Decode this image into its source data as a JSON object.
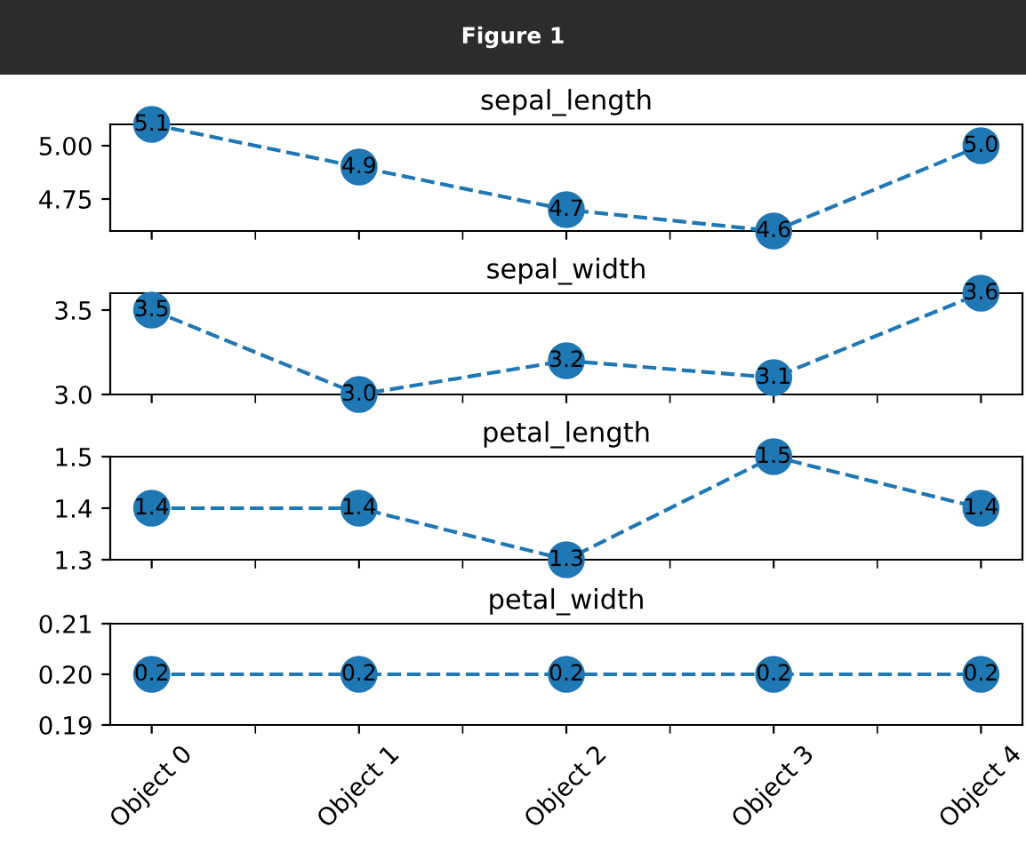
{
  "chart_data": [
    {
      "type": "line",
      "title": "sepal_length",
      "annotations": [
        "Figure 1"
      ],
      "categories": [
        null,
        null,
        null,
        null,
        null
      ],
      "series": [
        {
          "color": "#1f77b4",
          "values": [
            5.1,
            4.9,
            4.7,
            4.6,
            5.0
          ],
          "value_labels": [
            "5.1",
            "4.9",
            "4.7",
            "4.6",
            "5.0"
          ]
        }
      ],
      "ylim": [
        4.6,
        5.1
      ],
      "yticks": [
        4.75,
        {
          "value": 5.0,
          "label": "5.00"
        }
      ],
      "tick_labels": "y",
      "marker": "circle",
      "line_style": "dashed"
    },
    {
      "type": "line",
      "title": "sepal_width",
      "categories": [
        null,
        null,
        null,
        null,
        null
      ],
      "series": [
        {
          "color": "#1f77b4",
          "values": [
            3.5,
            3.0,
            3.2,
            3.1,
            3.6
          ],
          "value_labels": [
            "3.5",
            "3.0",
            "3.2",
            "3.1",
            "3.6"
          ]
        }
      ],
      "ylim": [
        3.0,
        3.6
      ],
      "yticks": [
        {
          "value": 3.0,
          "label": "3.0"
        },
        3.5
      ],
      "tick_labels": "y",
      "marker": "circle",
      "line_style": "dashed"
    },
    {
      "type": "line",
      "title": "petal_length",
      "categories": [
        null,
        null,
        null,
        null,
        null
      ],
      "series": [
        {
          "color": "#1f77b4",
          "values": [
            1.4,
            1.4,
            1.3,
            1.5,
            1.4
          ],
          "value_labels": [
            "1.4",
            "1.4",
            "1.3",
            "1.5",
            "1.4"
          ]
        }
      ],
      "ylim": [
        1.3,
        1.5
      ],
      "yticks": [
        1.3,
        1.4,
        1.5
      ],
      "tick_labels": "y",
      "marker": "circle",
      "line_style": "dashed"
    },
    {
      "type": "line",
      "title": "petal_width",
      "categories": [
        "Object 0",
        "Object 1",
        "Object 2",
        "Object 3",
        "Object 4"
      ],
      "series": [
        {
          "color": "#1f77b4",
          "values": [
            0.2,
            0.2,
            0.2,
            0.2,
            0.2
          ],
          "value_labels": [
            "0.2",
            "0.2",
            "0.2",
            "0.2",
            "0.2"
          ]
        }
      ],
      "ylim": [
        0.19,
        0.21
      ],
      "yticks": [
        {
          "value": 0.19,
          "label": "0.19"
        },
        {
          "value": 0.2,
          "label": "0.20"
        },
        {
          "value": 0.21,
          "label": "0.21"
        }
      ],
      "marker": "circle",
      "line_style": "dashed"
    }
  ]
}
